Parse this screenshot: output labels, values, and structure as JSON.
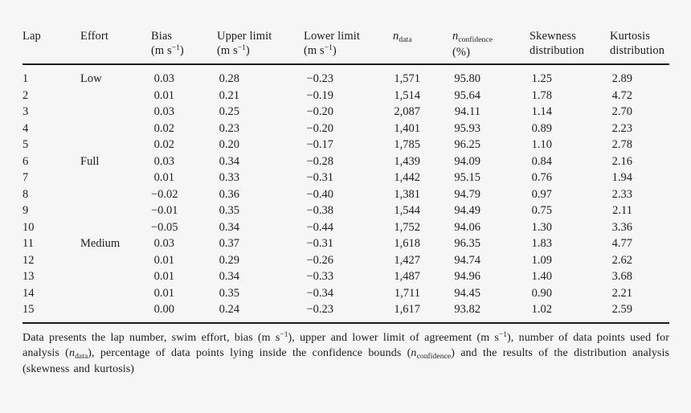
{
  "page": {
    "background": "#f6f6f6",
    "text_color": "#1d1d1d",
    "rule_color": "#1a1a1a"
  },
  "table": {
    "columns": [
      {
        "id": "lap",
        "line1": [
          {
            "t": "Lap"
          }
        ]
      },
      {
        "id": "effort",
        "line1": [
          {
            "t": "Effort"
          }
        ]
      },
      {
        "id": "bias",
        "line1": [
          {
            "t": "Bias"
          }
        ],
        "line2": [
          {
            "t": "(m s"
          },
          {
            "t": "−1",
            "sup": true
          },
          {
            "t": ")"
          }
        ]
      },
      {
        "id": "upper-limit",
        "line1": [
          {
            "t": "Upper limit"
          }
        ],
        "line2": [
          {
            "t": "(m s"
          },
          {
            "t": "−1",
            "sup": true
          },
          {
            "t": ")"
          }
        ]
      },
      {
        "id": "lower-limit",
        "line1": [
          {
            "t": "Lower limit"
          }
        ],
        "line2": [
          {
            "t": "(m s"
          },
          {
            "t": "−1",
            "sup": true
          },
          {
            "t": ")"
          }
        ]
      },
      {
        "id": "n-data",
        "line1": [
          {
            "t": "n",
            "italic": true
          },
          {
            "t": "data",
            "sub": true
          }
        ]
      },
      {
        "id": "n-confidence",
        "line1": [
          {
            "t": "n",
            "italic": true
          },
          {
            "t": "confidence",
            "sub": true
          }
        ],
        "line2": [
          {
            "t": "(%)"
          }
        ]
      },
      {
        "id": "skewness",
        "line1": [
          {
            "t": "Skewness"
          }
        ],
        "line2": [
          {
            "t": "distribution"
          }
        ]
      },
      {
        "id": "kurtosis",
        "line1": [
          {
            "t": "Kurtosis"
          }
        ],
        "line2": [
          {
            "t": "distribution"
          }
        ]
      }
    ],
    "rows": [
      [
        "1",
        "Low",
        "0.03",
        "0.28",
        "−0.23",
        "1,571",
        "95.80",
        "1.25",
        "2.89"
      ],
      [
        "2",
        "",
        "0.01",
        "0.21",
        "−0.19",
        "1,514",
        "95.64",
        "1.78",
        "4.72"
      ],
      [
        "3",
        "",
        "0.03",
        "0.25",
        "−0.20",
        "2,087",
        "94.11",
        "1.14",
        "2.70"
      ],
      [
        "4",
        "",
        "0.02",
        "0.23",
        "−0.20",
        "1,401",
        "95.93",
        "0.89",
        "2.23"
      ],
      [
        "5",
        "",
        "0.02",
        "0.20",
        "−0.17",
        "1,785",
        "96.25",
        "1.10",
        "2.78"
      ],
      [
        "6",
        "Full",
        "0.03",
        "0.34",
        "−0.28",
        "1,439",
        "94.09",
        "0.84",
        "2.16"
      ],
      [
        "7",
        "",
        "0.01",
        "0.33",
        "−0.31",
        "1,442",
        "95.15",
        "0.76",
        "1.94"
      ],
      [
        "8",
        "",
        "−0.02",
        "0.36",
        "−0.40",
        "1,381",
        "94.79",
        "0.97",
        "2.33"
      ],
      [
        "9",
        "",
        "−0.01",
        "0.35",
        "−0.38",
        "1,544",
        "94.49",
        "0.75",
        "2.11"
      ],
      [
        "10",
        "",
        "−0.05",
        "0.34",
        "−0.44",
        "1,752",
        "94.06",
        "1.30",
        "3.36"
      ],
      [
        "11",
        "Medium",
        "0.03",
        "0.37",
        "−0.31",
        "1,618",
        "96.35",
        "1.83",
        "4.77"
      ],
      [
        "12",
        "",
        "0.01",
        "0.29",
        "−0.26",
        "1,427",
        "94.74",
        "1.09",
        "2.62"
      ],
      [
        "13",
        "",
        "0.01",
        "0.34",
        "−0.33",
        "1,487",
        "94.96",
        "1.40",
        "3.68"
      ],
      [
        "14",
        "",
        "0.01",
        "0.35",
        "−0.34",
        "1,711",
        "94.45",
        "0.90",
        "2.21"
      ],
      [
        "15",
        "",
        "0.00",
        "0.24",
        "−0.23",
        "1,617",
        "93.82",
        "1.02",
        "2.59"
      ]
    ],
    "footnote_runs": [
      {
        "t": "Data presents the lap number, swim effort, bias (m s"
      },
      {
        "t": "−1",
        "sup": true
      },
      {
        "t": "), upper and lower limit of agreement (m s"
      },
      {
        "t": "−1",
        "sup": true
      },
      {
        "t": "), number of data points used for analysis ("
      },
      {
        "t": "n",
        "italic": true
      },
      {
        "t": "data",
        "sub": true
      },
      {
        "t": "), percentage of data points lying inside the confidence bounds ("
      },
      {
        "t": "n",
        "italic": true
      },
      {
        "t": "confidence",
        "sub": true
      },
      {
        "t": ") and the results of the distribution analysis (skewness and kurtosis)"
      }
    ]
  }
}
